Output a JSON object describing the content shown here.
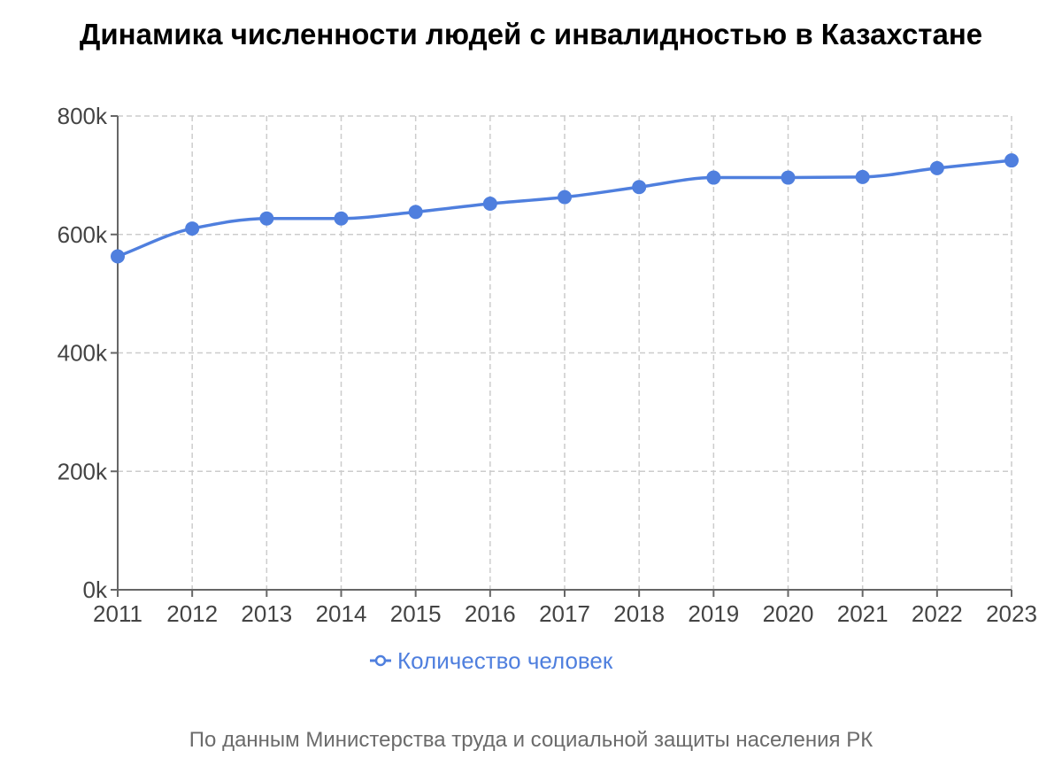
{
  "chart_data": {
    "type": "line",
    "title": "Динамика численности людей с инвалидностью в Казахстане",
    "xlabel": "",
    "ylabel": "",
    "categories": [
      "2011",
      "2012",
      "2013",
      "2014",
      "2015",
      "2016",
      "2017",
      "2018",
      "2019",
      "2020",
      "2021",
      "2022",
      "2023"
    ],
    "series": [
      {
        "name": "Количество человек",
        "values": [
          563000,
          610000,
          627000,
          627000,
          638000,
          652000,
          663000,
          680000,
          696000,
          696000,
          697000,
          712000,
          725000
        ],
        "color": "#4f7fde"
      }
    ],
    "ylim": [
      0,
      800000
    ],
    "y_ticks": [
      {
        "value": 0,
        "label": "0k"
      },
      {
        "value": 200000,
        "label": "200k"
      },
      {
        "value": 400000,
        "label": "400k"
      },
      {
        "value": 600000,
        "label": "600k"
      },
      {
        "value": 800000,
        "label": "800k"
      }
    ],
    "grid": true,
    "legend_position": "bottom-center",
    "source": "По данным Министерства труда и социальной защиты населения РК"
  }
}
